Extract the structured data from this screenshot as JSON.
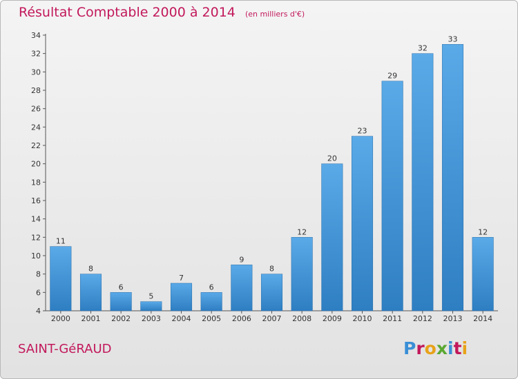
{
  "header": {
    "title": "Résultat Comptable 2000 à 2014",
    "unit": "(en milliers d'€)"
  },
  "footer": {
    "commune": "SAINT-GéRAUD",
    "logo_text": "Proxiti",
    "logo_colors": [
      "#3a8fd6",
      "#c2185b",
      "#e8a21a",
      "#5aa832",
      "#3a8fd6",
      "#c2185b",
      "#e8a21a"
    ]
  },
  "chart_data": {
    "type": "bar",
    "title": "Résultat Comptable 2000 à 2014",
    "subtitle": "(en milliers d'€)",
    "xlabel": "",
    "ylabel": "",
    "categories": [
      "2000",
      "2001",
      "2002",
      "2003",
      "2004",
      "2005",
      "2006",
      "2007",
      "2008",
      "2009",
      "2010",
      "2011",
      "2012",
      "2013",
      "2014"
    ],
    "values": [
      11,
      8,
      6,
      5,
      7,
      6,
      9,
      8,
      12,
      20,
      23,
      29,
      32,
      33,
      12
    ],
    "ylim": [
      4,
      34
    ],
    "yticks": [
      4,
      6,
      8,
      10,
      12,
      14,
      16,
      18,
      20,
      22,
      24,
      26,
      28,
      30,
      32,
      34
    ],
    "grid": false,
    "legend": "none",
    "bar_color": "#3a8fd6",
    "bar_color_light": "#5aaae8",
    "title_color": "#c2185b"
  }
}
